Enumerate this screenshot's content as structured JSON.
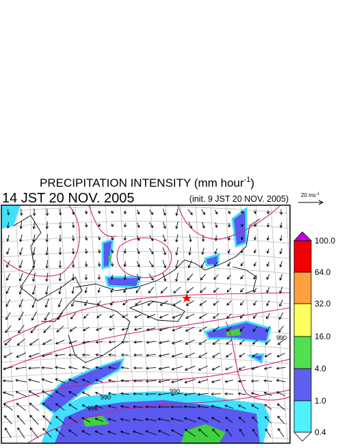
{
  "header": {
    "title": "PRECIPITATION INTENSITY (mm hour",
    "title_exponent": "-1",
    "title_close": ")",
    "time": "14 JST 20 NOV. 2005",
    "init": "(init. 9 JST 20 NOV. 2005)"
  },
  "reference_vector": {
    "label": "20 ms",
    "exponent": "-1"
  },
  "colorbar": {
    "labels": [
      "100.0",
      "64.0",
      "32.0",
      "16.0",
      "4.0",
      "1.0",
      "0.4"
    ]
  },
  "contour_labels": [
    "990",
    "990",
    "996",
    "990"
  ]
}
